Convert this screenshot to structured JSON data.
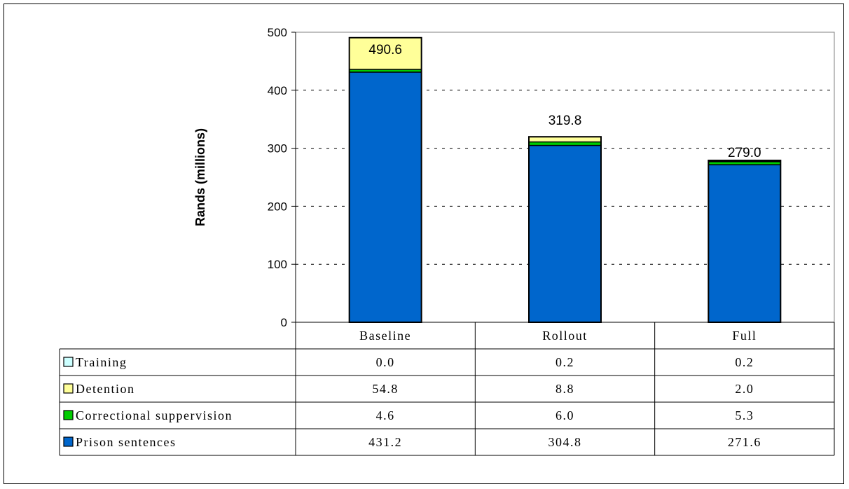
{
  "chart_data": {
    "type": "bar",
    "stacked": true,
    "ylabel": "Rands (millions)",
    "ylim": [
      0,
      500
    ],
    "yticks": [
      0,
      100,
      200,
      300,
      400,
      500
    ],
    "grid": true,
    "categories": [
      "Baseline",
      "Rollout",
      "Full"
    ],
    "totals": [
      "490.6",
      "319.8",
      "279.0"
    ],
    "series": [
      {
        "name": "Prison sentences",
        "color": "#0066CC",
        "values": [
          431.2,
          304.8,
          271.6
        ],
        "labels": [
          "431.2",
          "304.8",
          "271.6"
        ]
      },
      {
        "name": "Correctional suppervision",
        "color": "#00CC00",
        "values": [
          4.6,
          6.0,
          5.3
        ],
        "labels": [
          "4.6",
          "6.0",
          "5.3"
        ]
      },
      {
        "name": "Detention",
        "color": "#FFFF99",
        "values": [
          54.8,
          8.8,
          2.0
        ],
        "labels": [
          "54.8",
          "8.8",
          "2.0"
        ]
      },
      {
        "name": "Training",
        "color": "#CCFFFF",
        "values": [
          0.0,
          0.2,
          0.2
        ],
        "labels": [
          "0.0",
          "0.2",
          "0.2"
        ]
      }
    ],
    "legend_position": "data-table-left"
  }
}
